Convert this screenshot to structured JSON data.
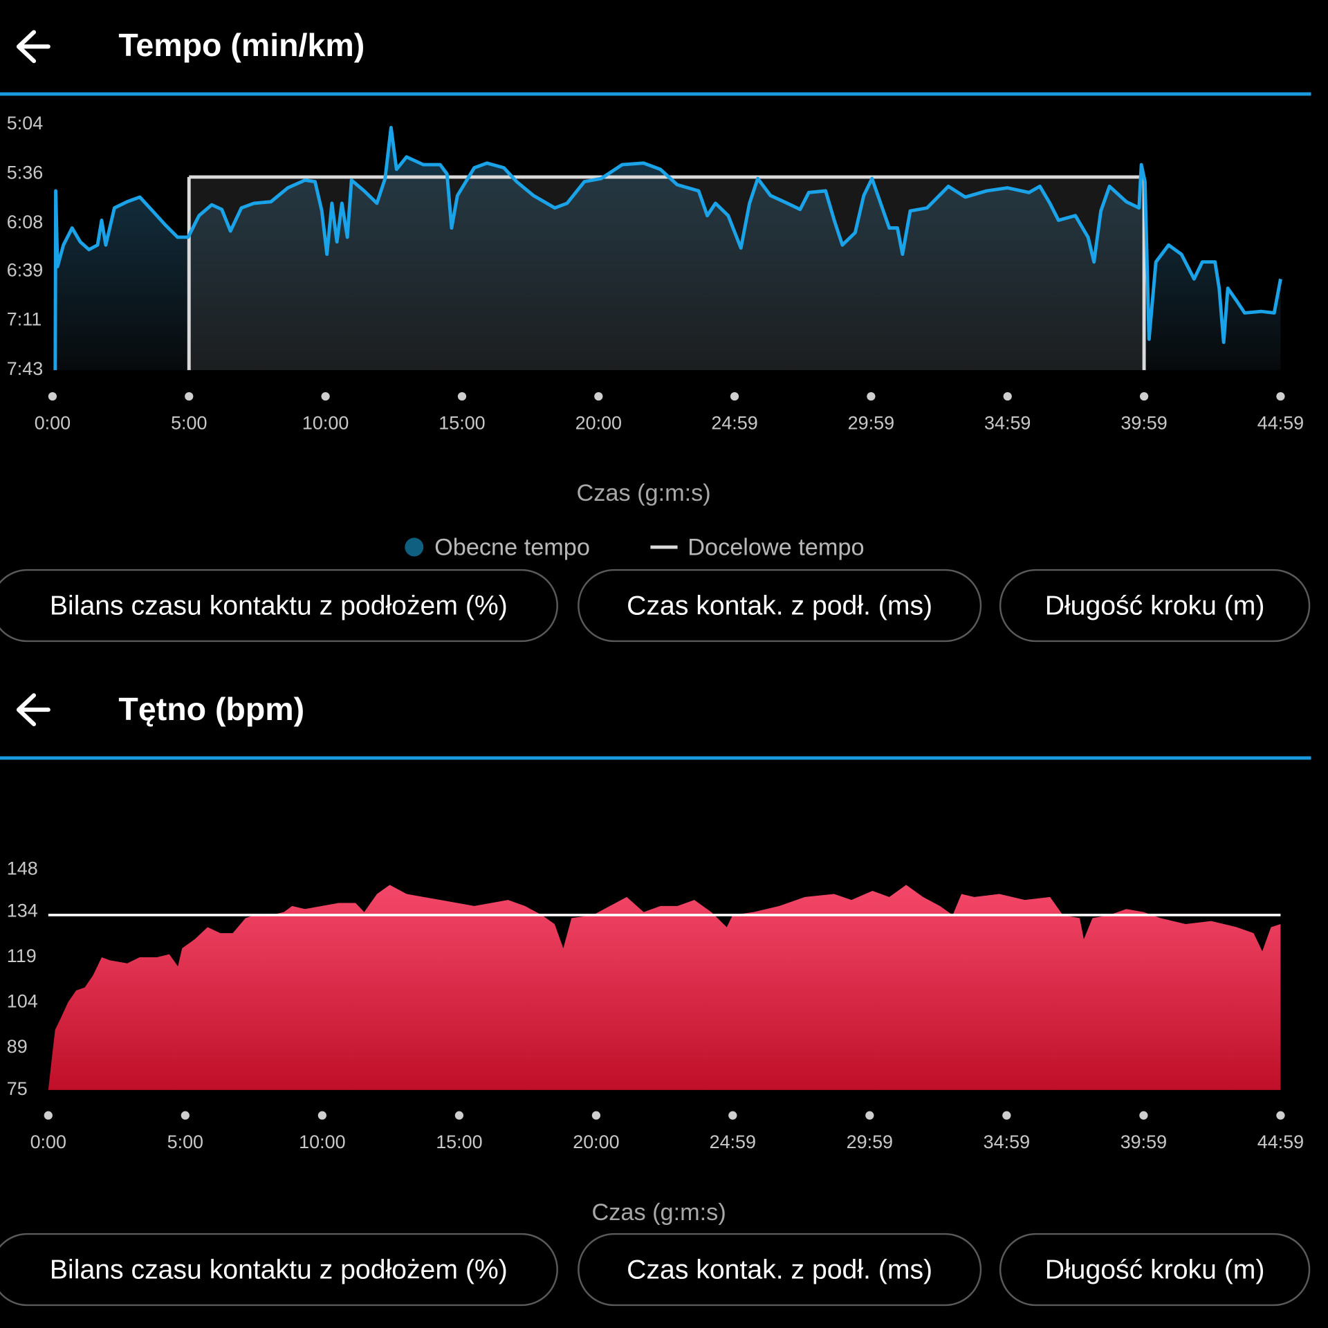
{
  "chart_data": [
    {
      "type": "line",
      "title": "Tempo (min/km)",
      "xlabel": "Czas (g:m:s)",
      "xlim": [
        0,
        2699
      ],
      "xticks": [
        {
          "value": 0,
          "label": "0:00"
        },
        {
          "value": 300,
          "label": "5:00"
        },
        {
          "value": 600,
          "label": "10:00"
        },
        {
          "value": 900,
          "label": "15:00"
        },
        {
          "value": 1200,
          "label": "20:00"
        },
        {
          "value": 1499,
          "label": "24:59"
        },
        {
          "value": 1799,
          "label": "29:59"
        },
        {
          "value": 2099,
          "label": "34:59"
        },
        {
          "value": 2399,
          "label": "39:59"
        },
        {
          "value": 2699,
          "label": "44:59"
        }
      ],
      "ylim": [
        304,
        463
      ],
      "y_reversed": true,
      "yticks": [
        {
          "value": 304,
          "label": "5:04"
        },
        {
          "value": 336,
          "label": "5:36"
        },
        {
          "value": 368,
          "label": "6:08"
        },
        {
          "value": 399,
          "label": "6:39"
        },
        {
          "value": 431,
          "label": "7:11"
        },
        {
          "value": 463,
          "label": "7:43"
        }
      ],
      "series": [
        {
          "name": "Obecne tempo",
          "color": "#1aa3e8",
          "marker_color": "#0f5f80",
          "x": [
            6,
            7,
            11,
            24,
            43,
            61,
            80,
            99,
            108,
            117,
            136,
            164,
            192,
            220,
            248,
            275,
            298,
            322,
            350,
            372,
            391,
            415,
            443,
            480,
            517,
            555,
            577,
            592,
            603,
            614,
            625,
            636,
            648,
            657,
            685,
            713,
            731,
            744,
            756,
            778,
            815,
            852,
            867,
            877,
            890,
            927,
            955,
            992,
            1020,
            1057,
            1104,
            1131,
            1169,
            1206,
            1252,
            1299,
            1336,
            1373,
            1420,
            1439,
            1457,
            1485,
            1513,
            1532,
            1550,
            1578,
            1615,
            1643,
            1662,
            1699,
            1718,
            1736,
            1764,
            1783,
            1801,
            1820,
            1839,
            1857,
            1868,
            1885,
            1922,
            1969,
            2006,
            2053,
            2099,
            2146,
            2170,
            2192,
            2211,
            2248,
            2276,
            2289,
            2304,
            2323,
            2360,
            2388,
            2393,
            2401,
            2410,
            2425,
            2453,
            2481,
            2509,
            2527,
            2555,
            2564,
            2574,
            2583,
            2602,
            2620,
            2657,
            2685,
            2699
          ],
          "values": [
            463,
            347,
            396,
            382,
            371,
            380,
            385,
            382,
            366,
            382,
            358,
            354,
            351,
            360,
            369,
            377,
            377,
            363,
            356,
            359,
            373,
            358,
            355,
            354,
            345,
            340,
            341,
            360,
            388,
            355,
            380,
            355,
            377,
            340,
            347,
            355,
            339,
            306,
            333,
            325,
            330,
            330,
            336,
            371,
            350,
            332,
            329,
            332,
            341,
            350,
            358,
            355,
            341,
            339,
            330,
            329,
            333,
            343,
            347,
            363,
            355,
            363,
            384,
            355,
            339,
            350,
            355,
            359,
            348,
            347,
            366,
            382,
            374,
            350,
            339,
            355,
            371,
            371,
            388,
            360,
            358,
            344,
            351,
            347,
            345,
            348,
            344,
            355,
            366,
            363,
            377,
            393,
            360,
            344,
            354,
            358,
            330,
            341,
            443,
            393,
            382,
            388,
            404,
            393,
            393,
            410,
            445,
            410,
            418,
            426,
            425,
            426,
            404
          ]
        },
        {
          "name": "Docelowe tempo",
          "color": "#d9d9d9",
          "x": [
            300,
            2399
          ],
          "values": [
            338,
            338
          ]
        }
      ]
    },
    {
      "type": "area",
      "title": "Tętno (bpm)",
      "xlabel": "Czas (g:m:s)",
      "xlim": [
        0,
        2699
      ],
      "xticks": [
        {
          "value": 0,
          "label": "0:00"
        },
        {
          "value": 300,
          "label": "5:00"
        },
        {
          "value": 600,
          "label": "10:00"
        },
        {
          "value": 900,
          "label": "15:00"
        },
        {
          "value": 1200,
          "label": "20:00"
        },
        {
          "value": 1499,
          "label": "24:59"
        },
        {
          "value": 1799,
          "label": "29:59"
        },
        {
          "value": 2099,
          "label": "34:59"
        },
        {
          "value": 2399,
          "label": "39:59"
        },
        {
          "value": 2699,
          "label": "44:59"
        }
      ],
      "ylim": [
        75,
        148
      ],
      "yticks": [
        75,
        89,
        104,
        119,
        134,
        148
      ],
      "reference_line": 133,
      "series": [
        {
          "color": "#e8304f",
          "x": [
            0,
            6,
            15,
            28,
            43,
            61,
            80,
            98,
            117,
            135,
            173,
            200,
            238,
            265,
            284,
            293,
            321,
            349,
            377,
            404,
            432,
            451,
            488,
            516,
            534,
            562,
            599,
            636,
            673,
            692,
            720,
            748,
            785,
            822,
            859,
            896,
            933,
            970,
            1007,
            1044,
            1081,
            1109,
            1128,
            1146,
            1193,
            1230,
            1267,
            1304,
            1341,
            1378,
            1415,
            1452,
            1486,
            1499,
            1545,
            1601,
            1657,
            1721,
            1759,
            1805,
            1842,
            1879,
            1916,
            1953,
            1981,
            2000,
            2028,
            2083,
            2139,
            2194,
            2222,
            2259,
            2268,
            2287,
            2324,
            2361,
            2399,
            2436,
            2491,
            2547,
            2603,
            2640,
            2659,
            2678,
            2699
          ],
          "values": [
            75,
            83,
            95,
            99,
            104,
            108,
            109,
            113,
            119,
            118,
            117,
            119,
            119,
            120,
            116,
            122,
            125,
            129,
            127,
            127,
            132,
            133,
            133,
            134,
            136,
            135,
            136,
            137,
            137,
            134,
            140,
            143,
            140,
            139,
            138,
            137,
            136,
            137,
            138,
            136,
            133,
            130,
            122,
            132,
            133,
            136,
            139,
            134,
            136,
            136,
            138,
            134,
            129,
            133,
            134,
            136,
            139,
            140,
            138,
            141,
            139,
            143,
            139,
            136,
            133,
            140,
            139,
            140,
            138,
            139,
            133,
            132,
            125,
            132,
            133,
            135,
            134,
            132,
            130,
            131,
            129,
            127,
            121,
            129,
            130
          ]
        }
      ]
    }
  ],
  "button_rows": [
    [
      "Bilans czasu kontaktu z podłożem (%)",
      "Czas kontak. z podł. (ms)",
      "Długość kroku (m)"
    ],
    [
      "Bilans czasu kontaktu z podłożem (%)",
      "Czas kontak. z podł. (ms)",
      "Długość kroku (m)"
    ]
  ]
}
